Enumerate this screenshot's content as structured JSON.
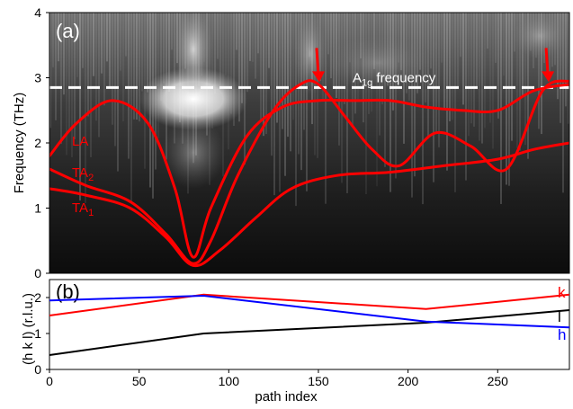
{
  "chart_data": [
    {
      "panel_label": "(a)",
      "type": "heatmap",
      "ylabel": "Frequency (THz)",
      "xlim": [
        0,
        290
      ],
      "ylim": [
        0,
        4
      ],
      "yticks": [
        "0",
        "1",
        "2",
        "3",
        "4"
      ],
      "reference_line": {
        "value": 2.85,
        "label_main": "A",
        "label_sub": "1g",
        "label_rest": " frequency",
        "color": "#ffffff"
      },
      "arrows_at_x": [
        150,
        278
      ],
      "series": [
        {
          "name": "LA",
          "name_sub": "",
          "color": "#ff0000",
          "x": [
            0,
            15,
            35,
            55,
            70,
            80,
            90,
            110,
            130,
            150,
            170,
            190,
            210,
            230,
            250,
            270,
            290
          ],
          "y": [
            1.8,
            2.3,
            2.65,
            2.3,
            1.3,
            0.25,
            1.0,
            2.1,
            2.55,
            2.65,
            2.65,
            2.65,
            2.55,
            2.5,
            2.5,
            2.8,
            2.9
          ]
        },
        {
          "name": "TA",
          "name_sub": "2",
          "color": "#ff0000",
          "x": [
            0,
            20,
            45,
            65,
            80,
            90,
            105,
            125,
            140,
            150,
            165,
            180,
            195,
            215,
            235,
            255,
            275,
            290
          ],
          "y": [
            1.6,
            1.35,
            1.1,
            0.6,
            0.15,
            0.5,
            1.5,
            2.5,
            2.9,
            2.9,
            2.4,
            1.9,
            1.65,
            2.15,
            1.95,
            1.6,
            2.8,
            2.95
          ]
        },
        {
          "name": "TA",
          "name_sub": "1",
          "color": "#ff0000",
          "x": [
            0,
            20,
            45,
            65,
            80,
            95,
            115,
            135,
            160,
            190,
            220,
            250,
            270,
            290
          ],
          "y": [
            1.3,
            1.2,
            1.0,
            0.55,
            0.12,
            0.35,
            0.85,
            1.3,
            1.5,
            1.55,
            1.65,
            1.75,
            1.9,
            2.0
          ]
        }
      ]
    },
    {
      "panel_label": "(b)",
      "type": "line",
      "xlabel": "path index",
      "ylabel": "(h k l) (r.l.u.)",
      "xlim": [
        0,
        290
      ],
      "ylim": [
        0,
        2.5
      ],
      "xticks": [
        "0",
        "50",
        "100",
        "150",
        "200",
        "250"
      ],
      "yticks": [
        "0",
        "1",
        "2"
      ],
      "series": [
        {
          "name": "k",
          "color": "#ff0000",
          "x": [
            0,
            86,
            210,
            290
          ],
          "y": [
            1.5,
            2.08,
            1.68,
            2.08
          ]
        },
        {
          "name": "l",
          "color": "#000000",
          "x": [
            0,
            86,
            210,
            290
          ],
          "y": [
            0.4,
            1.0,
            1.3,
            1.65
          ]
        },
        {
          "name": "h",
          "color": "#0000ff",
          "x": [
            0,
            86,
            210,
            290
          ],
          "y": [
            1.92,
            2.05,
            1.33,
            1.17
          ]
        }
      ]
    }
  ]
}
